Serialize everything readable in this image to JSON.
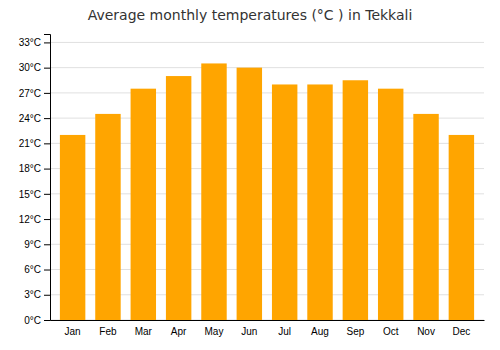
{
  "chart_data": {
    "type": "bar",
    "title": "Average monthly temperatures (°C ) in Tekkali",
    "categories": [
      "Jan",
      "Feb",
      "Mar",
      "Apr",
      "May",
      "Jun",
      "Jul",
      "Aug",
      "Sep",
      "Oct",
      "Nov",
      "Dec"
    ],
    "values": [
      22,
      24.5,
      27.5,
      29,
      30.5,
      30,
      28,
      28,
      28.5,
      27.5,
      24.5,
      22
    ],
    "color": "#FFA500",
    "ylim": [
      0,
      34
    ],
    "yticks": [
      {
        "value": 0,
        "label": "0°C"
      },
      {
        "value": 3,
        "label": "3°C"
      },
      {
        "value": 6,
        "label": "6°C"
      },
      {
        "value": 9,
        "label": "9°C"
      },
      {
        "value": 12,
        "label": "12°C"
      },
      {
        "value": 15,
        "label": "15°C"
      },
      {
        "value": 18,
        "label": "18°C"
      },
      {
        "value": 21,
        "label": "21°C"
      },
      {
        "value": 24,
        "label": "24°C"
      },
      {
        "value": 27,
        "label": "27°C"
      },
      {
        "value": 30,
        "label": "30°C"
      },
      {
        "value": 33,
        "label": "33°C"
      }
    ],
    "grid": true
  }
}
